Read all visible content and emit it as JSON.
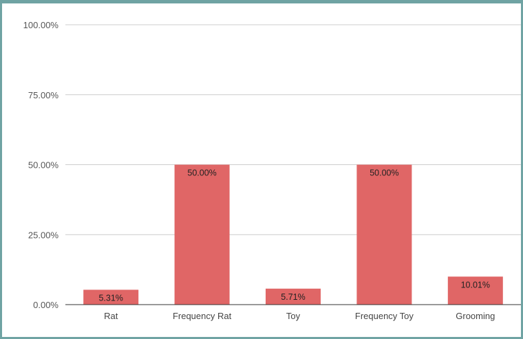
{
  "chart_data": {
    "type": "bar",
    "title": "",
    "xlabel": "",
    "ylabel": "",
    "categories": [
      "Rat",
      "Frequency Rat",
      "Toy",
      "Frequency Toy",
      "Grooming"
    ],
    "values": [
      5.31,
      50.0,
      5.71,
      50.0,
      10.01
    ],
    "data_labels": [
      "5.31%",
      "50.00%",
      "5.71%",
      "50.00%",
      "10.01%"
    ],
    "ylim": [
      0,
      100
    ],
    "y_ticks": [
      0,
      25,
      50,
      75,
      100
    ],
    "y_tick_labels": [
      "0.00%",
      "25.00%",
      "50.00%",
      "75.00%",
      "100.00%"
    ],
    "grid": true,
    "legend": "none",
    "colors": {
      "bar": "#e06666",
      "grid": "#cccccc",
      "axis": "#333333",
      "frame": "#6fa3a3"
    }
  }
}
